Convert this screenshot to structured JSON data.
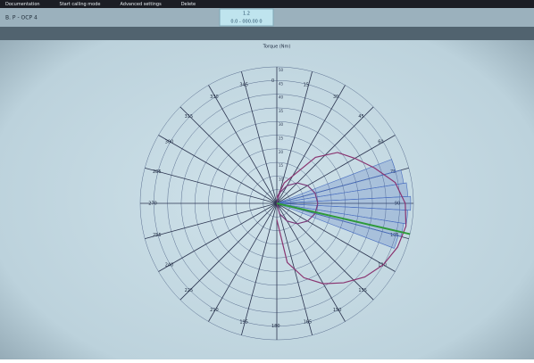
{
  "menu": [
    "Documentation",
    "Start calling mode",
    "Advanced settings",
    "Delete"
  ],
  "tab": "B. P - OCP 4",
  "field": {
    "top": "1.2",
    "bottom": "0.0 - 000.00 0"
  },
  "chart_data": {
    "type": "polar",
    "title": "Torque (Nm)",
    "rlim": [
      0,
      50
    ],
    "rticks": [
      0,
      5,
      10,
      15,
      20,
      25,
      30,
      35,
      40,
      45,
      50
    ],
    "thetaticks": [
      0,
      15,
      30,
      45,
      60,
      75,
      90,
      105,
      120,
      135,
      150,
      165,
      180,
      195,
      210,
      225,
      240,
      255,
      270,
      285,
      300,
      315,
      330,
      345
    ],
    "series": [
      {
        "color": "#8a3470",
        "theta": [
          0,
          20,
          40,
          50,
          60,
          70,
          80,
          90,
          100,
          110,
          120,
          130,
          140,
          150,
          160,
          170,
          180
        ],
        "r": [
          2,
          8,
          22,
          29,
          33,
          38,
          44,
          47,
          48,
          47,
          45,
          42,
          38,
          34,
          29,
          22,
          6
        ]
      },
      {
        "color": "#7a3a7a",
        "theta": [
          0,
          15,
          30,
          45,
          60,
          75,
          90,
          105,
          120,
          135,
          150,
          165,
          180
        ],
        "r": [
          0,
          4,
          7.5,
          10.6,
          13,
          14.5,
          15,
          14.5,
          13,
          10.6,
          7.5,
          4,
          0
        ]
      }
    ],
    "sectors": {
      "color": "#4a6fc0",
      "width": 6,
      "theta": [
        72,
        78,
        84,
        90,
        96,
        102,
        108
      ],
      "r": [
        45,
        47,
        48,
        49,
        48,
        47,
        46
      ]
    },
    "pointer": {
      "color": "#2e9a3a",
      "theta": 103,
      "r": 50
    }
  }
}
